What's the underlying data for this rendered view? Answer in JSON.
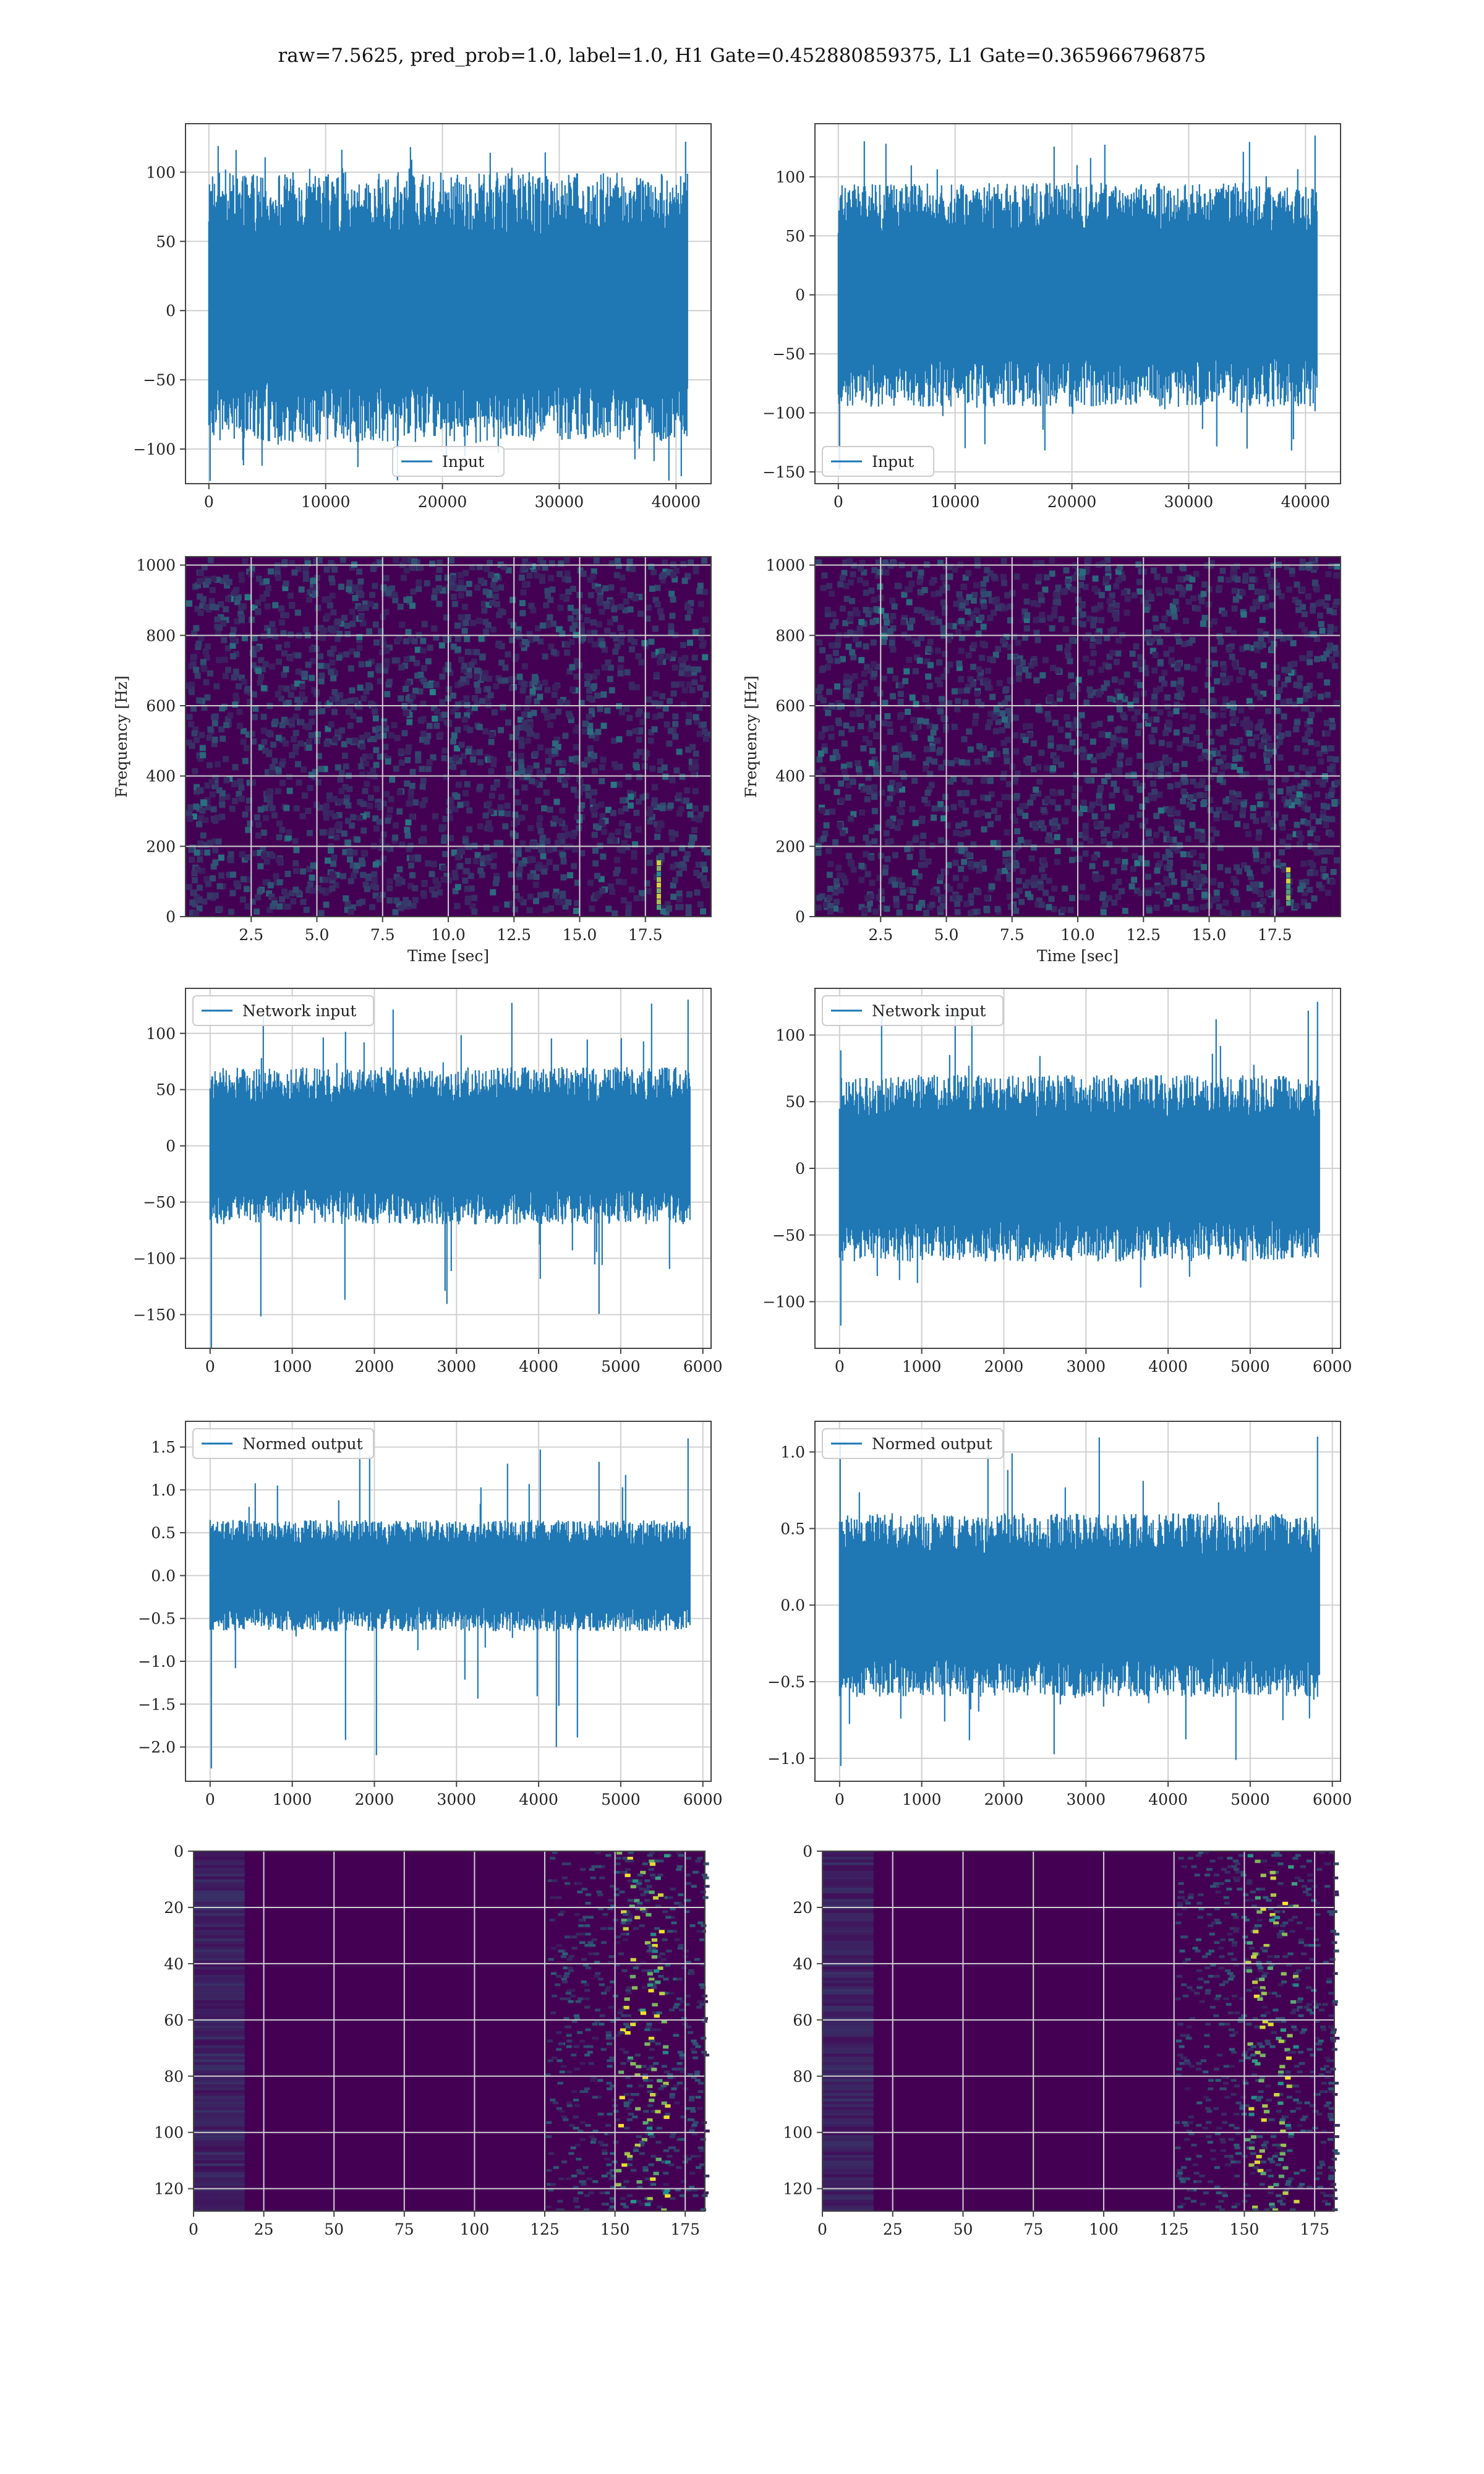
{
  "figure": {
    "title": "raw=7.5625, pred_prob=1.0, label=1.0, H1 Gate=0.452880859375, L1 Gate=0.365966796875"
  },
  "colors": {
    "line": "#1f77b4",
    "grid": "#d0d0d0",
    "spine": "#444444",
    "viridis_low": "#440154",
    "viridis_mid": "#21918c",
    "viridis_high": "#fde725"
  },
  "chart_data": [
    {
      "id": "input-h1",
      "type": "line",
      "legend": "Input",
      "legend_loc": "lower center",
      "grid": true,
      "xlim": [
        -2000,
        43000
      ],
      "ylim": [
        -125,
        135
      ],
      "xticks": [
        0,
        10000,
        20000,
        30000,
        40000
      ],
      "yticks": [
        -100,
        -50,
        0,
        50,
        100
      ],
      "series": [
        {
          "name": "Input",
          "n": 40960,
          "envelope": [
            -95,
            100
          ],
          "peaks": [
            -123,
            122
          ]
        }
      ]
    },
    {
      "id": "input-l1",
      "type": "line",
      "legend": "Input",
      "legend_loc": "lower left",
      "grid": true,
      "xlim": [
        -2000,
        43000
      ],
      "ylim": [
        -160,
        145
      ],
      "xticks": [
        0,
        10000,
        20000,
        30000,
        40000
      ],
      "yticks": [
        -150,
        -100,
        -50,
        0,
        50,
        100
      ],
      "series": [
        {
          "name": "Input",
          "n": 40960,
          "envelope": [
            -95,
            95
          ],
          "peaks": [
            -148,
            135
          ]
        }
      ]
    },
    {
      "id": "spec-h1",
      "type": "heatmap",
      "grid": true,
      "xlabel": "Time [sec]",
      "ylabel": "Frequency [Hz]",
      "xlim": [
        0,
        20
      ],
      "ylim": [
        0,
        1024
      ],
      "xticks": [
        2.5,
        5.0,
        7.5,
        10.0,
        12.5,
        15.0,
        17.5
      ],
      "yticks": [
        0,
        200,
        400,
        600,
        800,
        1000
      ],
      "event": {
        "x": 18.0,
        "y": [
          20,
          160
        ]
      }
    },
    {
      "id": "spec-l1",
      "type": "heatmap",
      "grid": true,
      "xlabel": "Time [sec]",
      "ylabel": "Frequency [Hz]",
      "xlim": [
        0,
        20
      ],
      "ylim": [
        0,
        1024
      ],
      "xticks": [
        2.5,
        5.0,
        7.5,
        10.0,
        12.5,
        15.0,
        17.5
      ],
      "yticks": [
        0,
        200,
        400,
        600,
        800,
        1000
      ],
      "event": {
        "x": 18.0,
        "y": [
          30,
          140
        ]
      }
    },
    {
      "id": "net-h1",
      "type": "line",
      "legend": "Network input",
      "legend_loc": "upper left",
      "grid": true,
      "xlim": [
        -300,
        6100
      ],
      "ylim": [
        -180,
        140
      ],
      "xticks": [
        0,
        1000,
        2000,
        3000,
        4000,
        5000,
        6000
      ],
      "yticks": [
        -150,
        -100,
        -50,
        0,
        50,
        100
      ],
      "series": [
        {
          "name": "Network input",
          "n": 5840,
          "envelope": [
            -70,
            70
          ],
          "peaks": [
            -182,
            130
          ]
        }
      ]
    },
    {
      "id": "net-l1",
      "type": "line",
      "legend": "Network input",
      "legend_loc": "upper left",
      "grid": true,
      "xlim": [
        -300,
        6100
      ],
      "ylim": [
        -135,
        135
      ],
      "xticks": [
        0,
        1000,
        2000,
        3000,
        4000,
        5000,
        6000
      ],
      "yticks": [
        -100,
        -50,
        0,
        50,
        100
      ],
      "series": [
        {
          "name": "Network input",
          "n": 5840,
          "envelope": [
            -70,
            70
          ],
          "peaks": [
            -118,
            125
          ]
        }
      ]
    },
    {
      "id": "norm-h1",
      "type": "line",
      "legend": "Normed output",
      "legend_loc": "upper left",
      "grid": true,
      "xlim": [
        -300,
        6100
      ],
      "ylim": [
        -2.4,
        1.8
      ],
      "xticks": [
        0,
        1000,
        2000,
        3000,
        4000,
        5000,
        6000
      ],
      "yticks": [
        -2.0,
        -1.5,
        -1.0,
        -0.5,
        0.0,
        0.5,
        1.0,
        1.5
      ],
      "series": [
        {
          "name": "Normed output",
          "n": 5840,
          "envelope": [
            -0.65,
            0.65
          ],
          "peaks": [
            -2.25,
            1.6
          ]
        }
      ]
    },
    {
      "id": "norm-l1",
      "type": "line",
      "legend": "Normed output",
      "legend_loc": "upper left",
      "grid": true,
      "xlim": [
        -300,
        6100
      ],
      "ylim": [
        -1.15,
        1.2
      ],
      "xticks": [
        0,
        1000,
        2000,
        3000,
        4000,
        5000,
        6000
      ],
      "yticks": [
        -1.0,
        -0.5,
        0.0,
        0.5,
        1.0
      ],
      "series": [
        {
          "name": "Normed output",
          "n": 5840,
          "envelope": [
            -0.6,
            0.6
          ],
          "peaks": [
            -1.05,
            1.1
          ]
        }
      ]
    },
    {
      "id": "feat-h1",
      "type": "heatmap",
      "grid": true,
      "xlim": [
        0,
        182
      ],
      "ylim": [
        128,
        0
      ],
      "xticks": [
        0,
        25,
        50,
        75,
        100,
        125,
        150,
        175
      ],
      "yticks": [
        0,
        20,
        40,
        60,
        80,
        100,
        120
      ],
      "event": {
        "x": [
          150,
          170
        ],
        "y": [
          0,
          128
        ]
      }
    },
    {
      "id": "feat-l1",
      "type": "heatmap",
      "grid": true,
      "xlim": [
        0,
        182
      ],
      "ylim": [
        128,
        0
      ],
      "xticks": [
        0,
        25,
        50,
        75,
        100,
        125,
        150,
        175
      ],
      "yticks": [
        0,
        20,
        40,
        60,
        80,
        100,
        120
      ],
      "event": {
        "x": [
          150,
          170
        ],
        "y": [
          0,
          128
        ]
      }
    }
  ]
}
